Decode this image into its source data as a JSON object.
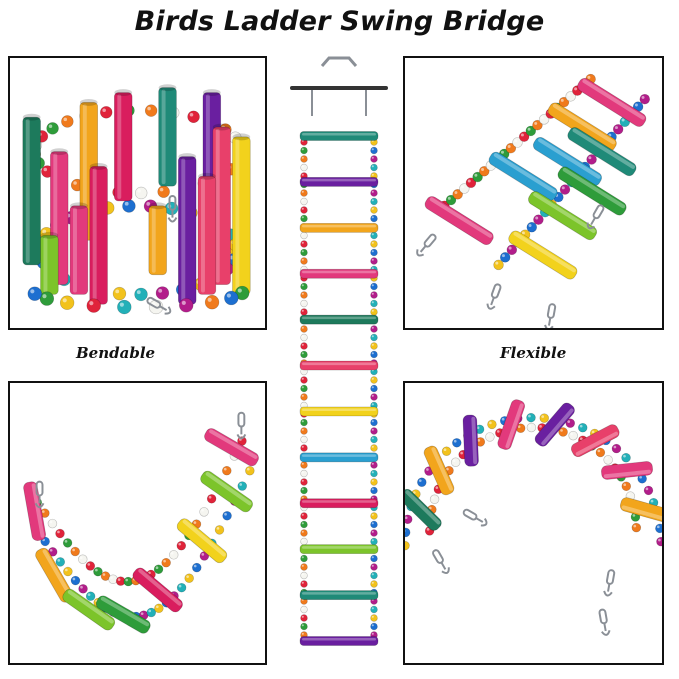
{
  "title": "Birds Ladder Swing Bridge",
  "captions": {
    "bendable": "Bendable",
    "flexible": "Flexible"
  },
  "colors": {
    "rung_palette": [
      "#1f8a78",
      "#6a1fa0",
      "#f2a51c",
      "#e2397c",
      "#1d7a5c",
      "#e8406a",
      "#f2d21c",
      "#2a9fd0",
      "#d91d5e",
      "#7cc42a"
    ],
    "bead_palette": [
      "#e0233a",
      "#f2c21c",
      "#2e9c3a",
      "#1d6fd0",
      "#f07a1c",
      "#b21d8a",
      "#f5f5f0",
      "#22b0b8"
    ]
  }
}
